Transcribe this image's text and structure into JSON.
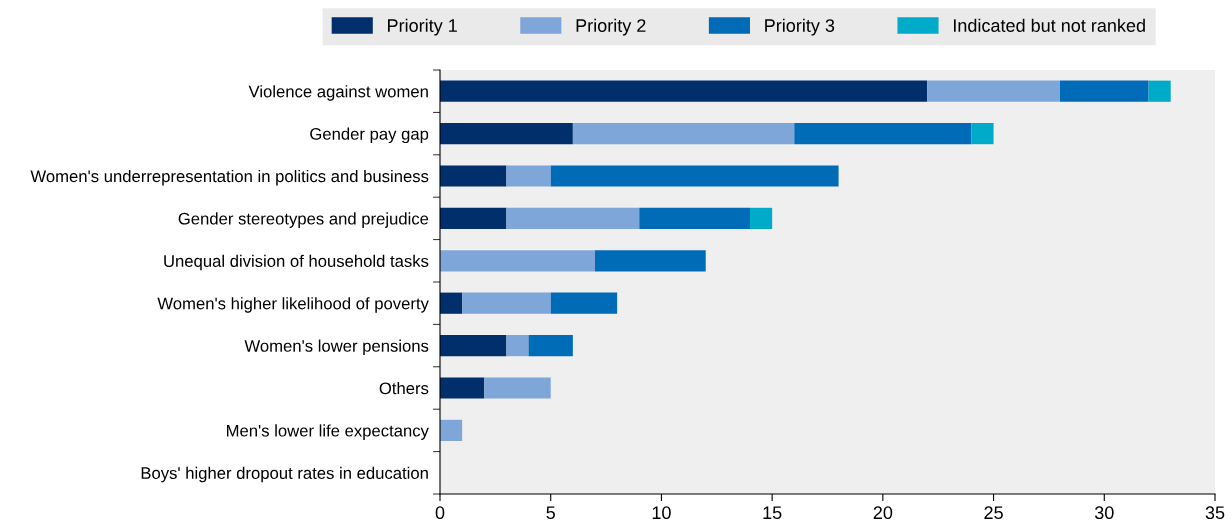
{
  "chart_data": {
    "type": "bar",
    "orientation": "horizontal",
    "stacked": true,
    "categories": [
      "Violence against women",
      "Gender pay gap",
      "Women's underrepresentation in politics and business",
      "Gender stereotypes and prejudice",
      "Unequal division of household tasks",
      "Women's higher likelihood of poverty",
      "Women's lower pensions",
      "Others",
      "Men's lower life expectancy",
      "Boys' higher dropout rates in education"
    ],
    "series": [
      {
        "name": "Priority 1",
        "color": "#002f6c",
        "values": [
          22,
          6,
          3,
          3,
          0,
          1,
          3,
          2,
          0,
          0
        ]
      },
      {
        "name": "Priority 2",
        "color": "#7fa6d9",
        "values": [
          6,
          10,
          2,
          6,
          7,
          4,
          1,
          3,
          1,
          0
        ]
      },
      {
        "name": "Priority 3",
        "color": "#006bb6",
        "values": [
          4,
          8,
          13,
          5,
          5,
          3,
          2,
          0,
          0,
          0
        ]
      },
      {
        "name": "Indicated but not ranked",
        "color": "#00aac9",
        "values": [
          1,
          1,
          0,
          1,
          0,
          0,
          0,
          0,
          0,
          0
        ]
      }
    ],
    "xlim": [
      0,
      35
    ],
    "xticks": [
      0,
      5,
      10,
      15,
      20,
      25,
      30,
      35
    ],
    "grid": false,
    "legend": "top"
  }
}
